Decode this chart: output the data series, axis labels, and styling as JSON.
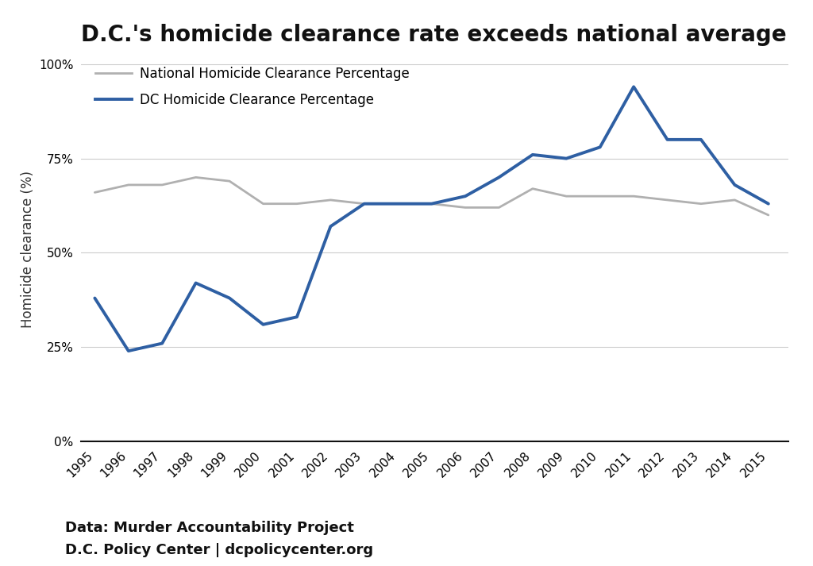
{
  "title": "D.C.'s homicide clearance rate exceeds national average",
  "ylabel": "Homicide clearance (%)",
  "source_line1": "Data: Murder Accountability Project",
  "source_line2": "D.C. Policy Center | dcpolicycenter.org",
  "years": [
    1995,
    1996,
    1997,
    1998,
    1999,
    2000,
    2001,
    2002,
    2003,
    2004,
    2005,
    2006,
    2007,
    2008,
    2009,
    2010,
    2011,
    2012,
    2013,
    2014,
    2015
  ],
  "dc_values": [
    38,
    24,
    26,
    42,
    38,
    31,
    33,
    57,
    63,
    63,
    63,
    65,
    70,
    76,
    75,
    78,
    94,
    80,
    80,
    68,
    63
  ],
  "national_values": [
    66,
    68,
    68,
    70,
    69,
    63,
    63,
    64,
    63,
    63,
    63,
    62,
    62,
    67,
    65,
    65,
    65,
    64,
    63,
    64,
    60
  ],
  "dc_color": "#2e5fa3",
  "national_color": "#b0b0b0",
  "dc_label": "DC Homicide Clearance Percentage",
  "national_label": "National Homicide Clearance Percentage",
  "dc_linewidth": 2.8,
  "national_linewidth": 2.0,
  "ylim": [
    0,
    102
  ],
  "yticks": [
    0,
    25,
    50,
    75,
    100
  ],
  "background_color": "#ffffff",
  "grid_color": "#cccccc",
  "title_fontsize": 20,
  "label_fontsize": 12,
  "tick_fontsize": 11,
  "source_fontsize": 13,
  "legend_fontsize": 12
}
